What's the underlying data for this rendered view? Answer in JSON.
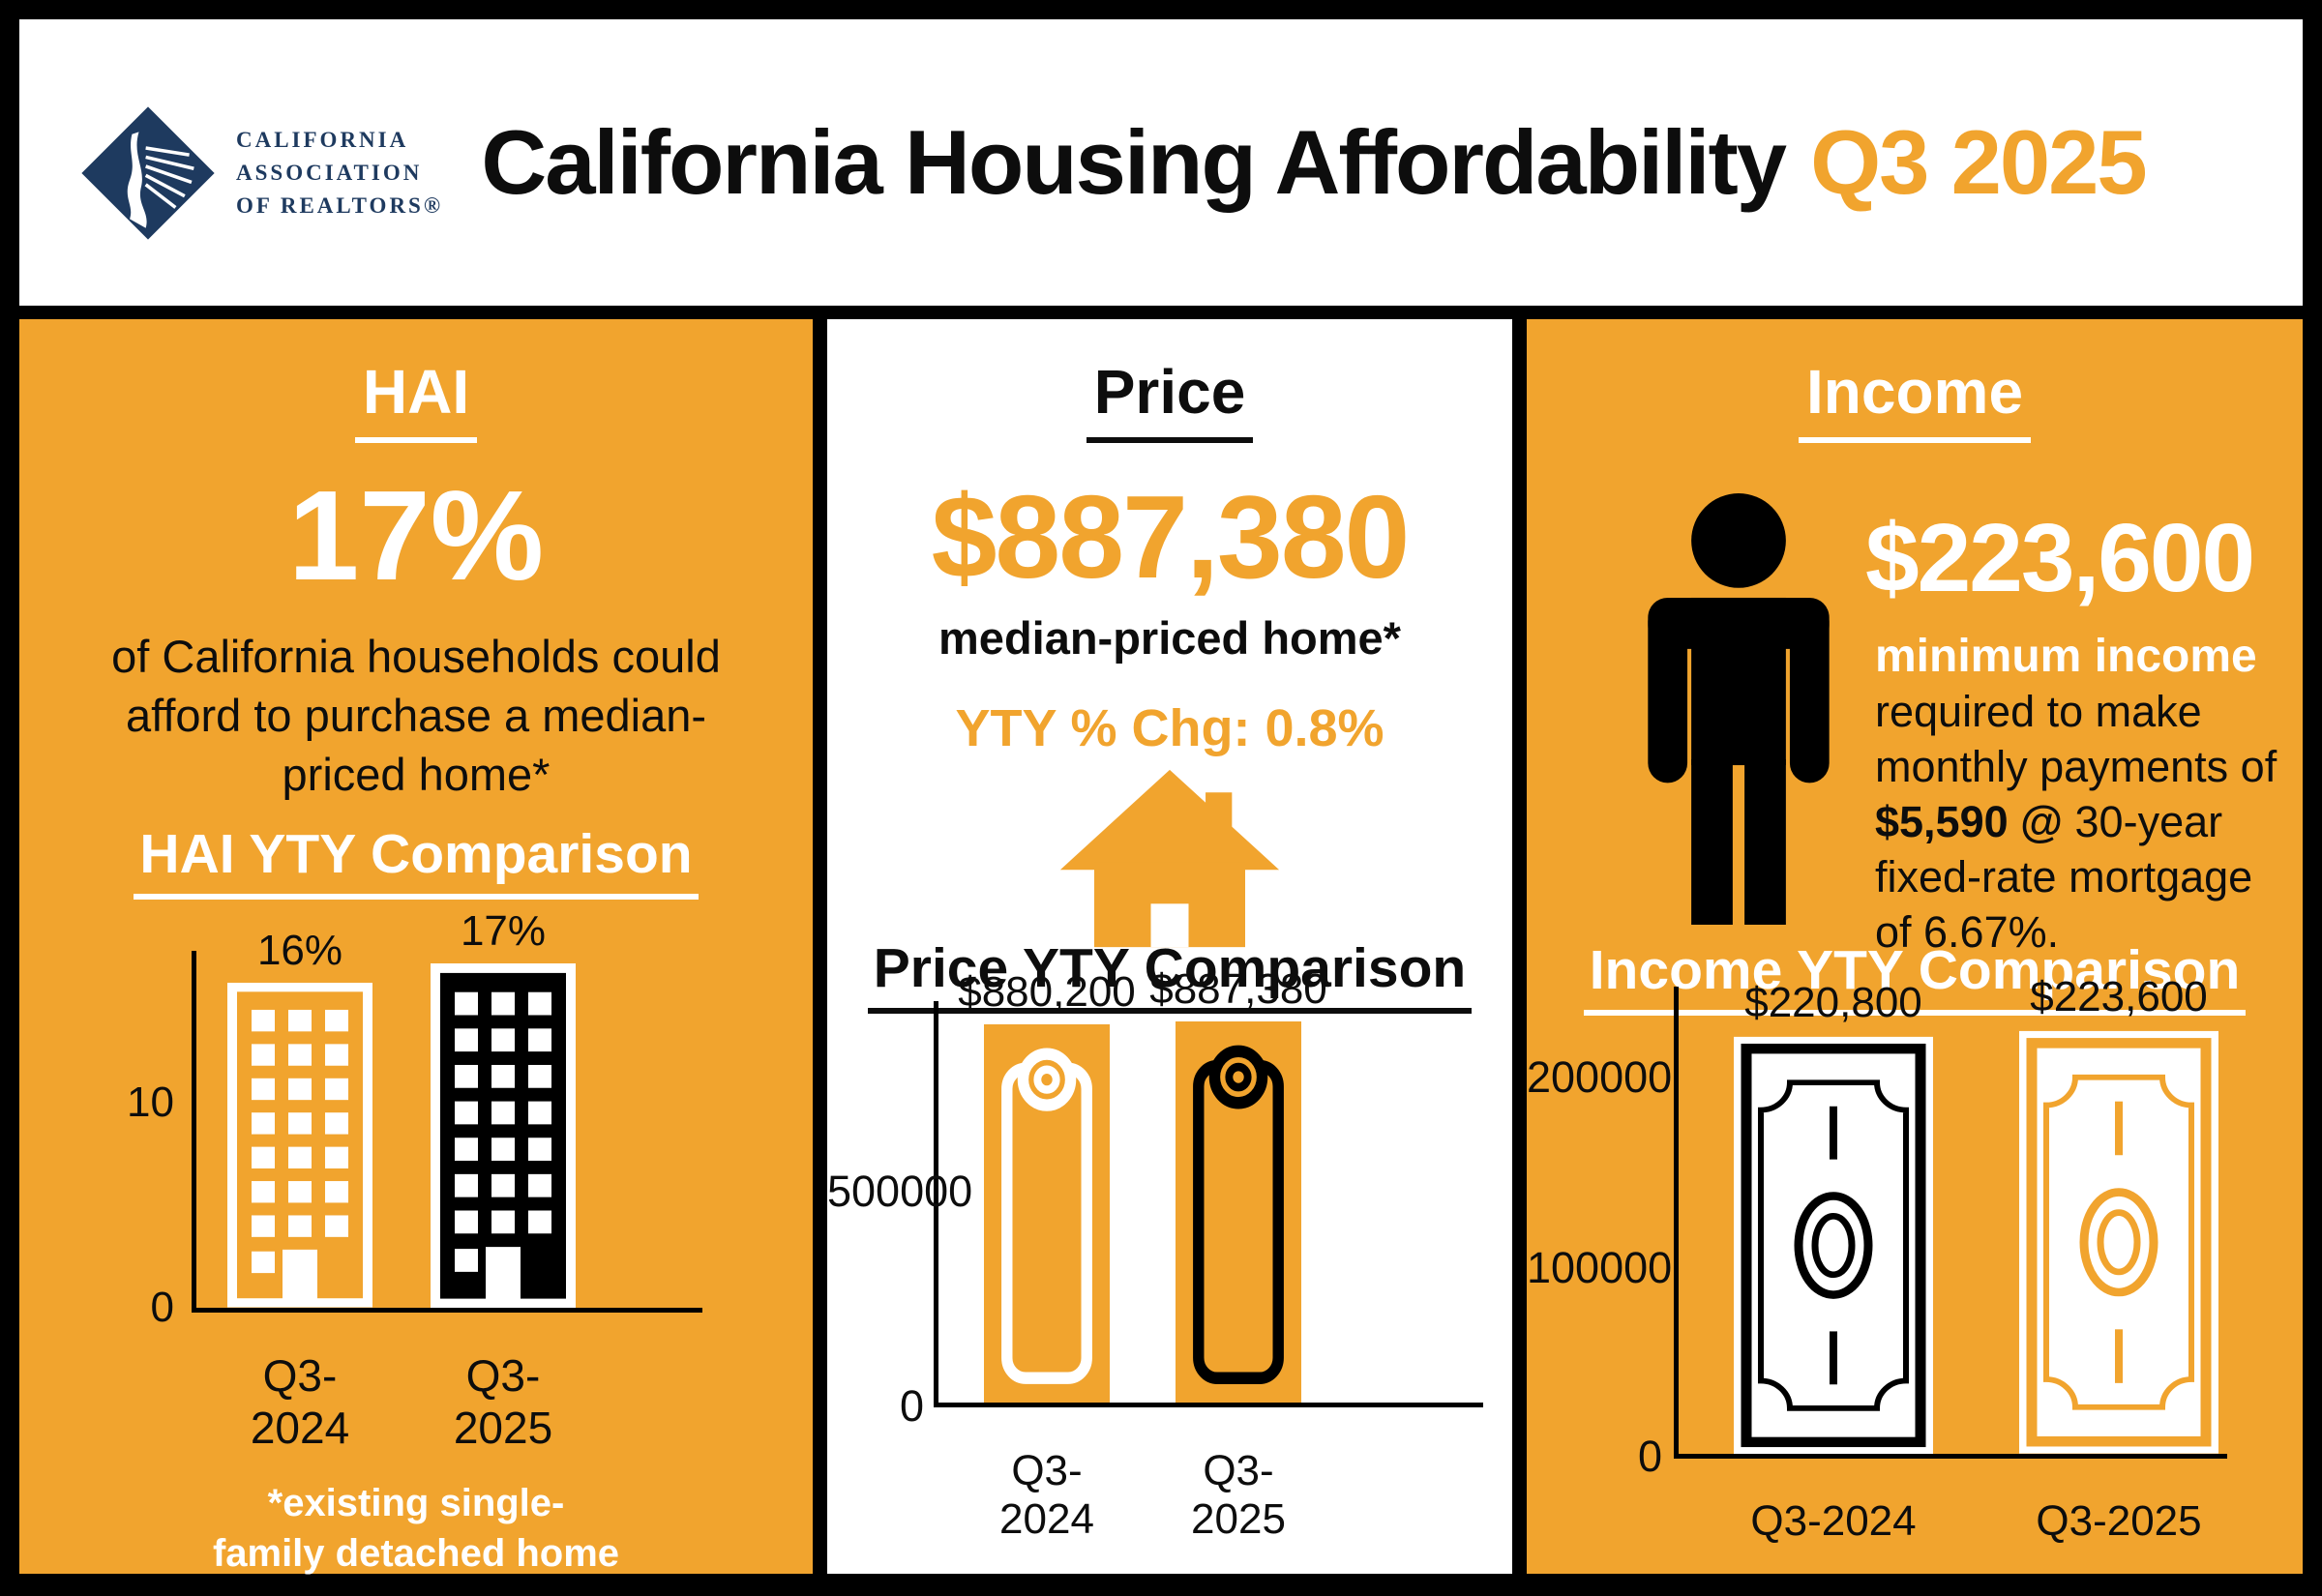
{
  "colors": {
    "orange": "#F1A42E",
    "black": "#000000",
    "white": "#FFFFFF",
    "navy": "#1E3A5F"
  },
  "header": {
    "logo_line1": "CALIFORNIA",
    "logo_line2": "ASSOCIATION",
    "logo_line3": "OF REALTORS®",
    "title_black": "California Housing Affordability",
    "title_orange": "Q3 2025"
  },
  "hai_panel": {
    "title": "HAI",
    "big_value": "17%",
    "description": "of California households could afford to purchase a median-priced home*",
    "chart_title": "HAI YTY Comparison",
    "footnote_line1": "*existing single-",
    "footnote_line2": "family detached home"
  },
  "price_panel": {
    "title": "Price",
    "big_value": "$887,380",
    "subtitle": "median-priced home*",
    "yty_change": "YTY % Chg: 0.8%",
    "chart_title": "Price YTY Comparison"
  },
  "income_panel": {
    "title": "Income",
    "big_value": "$223,600",
    "desc_line1": "minimum income",
    "desc_line2": "required to make",
    "desc_line3": "monthly payments of",
    "desc_bold": "$5,590 @",
    "desc_line4": " 30-year",
    "desc_line5": "fixed-rate mortgage",
    "desc_line6": "of 6.67%.",
    "chart_title": "Income YTY Comparison"
  },
  "chart_data": [
    {
      "type": "bar",
      "title": "HAI YTY Comparison",
      "categories": [
        "Q3-2024",
        "Q3-2025"
      ],
      "values": [
        16,
        17
      ],
      "value_labels": [
        "16%",
        "17%"
      ],
      "ylabel": "",
      "xlabel": "",
      "ylim": [
        0,
        17.5
      ],
      "yticks": [
        10,
        0
      ],
      "ytick_labels": [
        "10",
        "0"
      ],
      "grid": false,
      "legend": false,
      "bar_style": "building-icon"
    },
    {
      "type": "bar",
      "title": "Price YTY Comparison",
      "categories": [
        "Q3-2024",
        "Q3-2025"
      ],
      "values": [
        880200,
        887380
      ],
      "value_labels": [
        "$880,200",
        "$887,380"
      ],
      "ylabel": "",
      "xlabel": "",
      "ylim": [
        0,
        890000
      ],
      "yticks": [
        500000,
        0
      ],
      "ytick_labels": [
        "500000",
        "0"
      ],
      "grid": false,
      "legend": false,
      "bar_style": "price-tag-icon"
    },
    {
      "type": "bar",
      "title": "Income YTY Comparison",
      "categories": [
        "Q3-2024",
        "Q3-2025"
      ],
      "values": [
        220800,
        223600
      ],
      "value_labels": [
        "$220,800",
        "$223,600"
      ],
      "ylabel": "",
      "xlabel": "",
      "ylim": [
        0,
        236000
      ],
      "yticks": [
        200000,
        100000,
        0
      ],
      "ytick_labels": [
        "200000",
        "100000",
        "0"
      ],
      "grid": false,
      "legend": false,
      "bar_style": "dollar-bill-icon"
    }
  ]
}
